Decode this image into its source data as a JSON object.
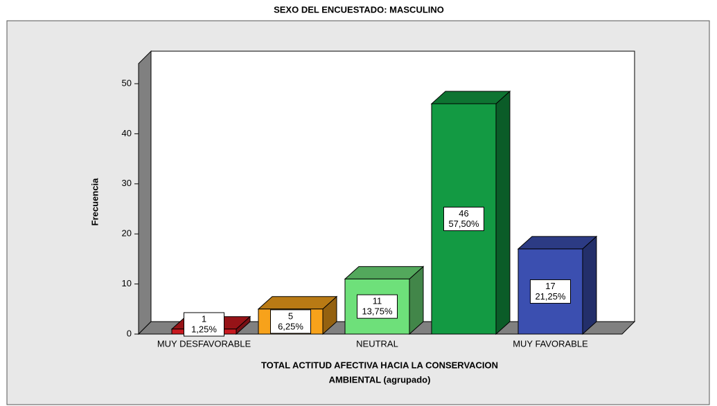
{
  "chart_data": {
    "type": "bar3d",
    "title": "SEXO DEL ENCUESTADO: MASCULINO",
    "x_label": [
      "TOTAL ACTITUD AFECTIVA HACIA LA CONSERVACION",
      "AMBIENTAL (agrupado)"
    ],
    "y_label": "Frecuencia",
    "categories": [
      "MUY DESFAVORABLE",
      null,
      "NEUTRAL",
      null,
      "MUY FAVORABLE"
    ],
    "values": [
      1,
      5,
      11,
      46,
      17
    ],
    "colors": [
      "#c8191f",
      "#f7a21b",
      "#6ee07a",
      "#139a43",
      "#3b4fb0"
    ],
    "percent": {
      "values": [
        1.25,
        6.25,
        13.75,
        57.5,
        21.25
      ],
      "value_labels": [
        "1,25%",
        "6,25%",
        "13,75%",
        "57,50%",
        "21,25%"
      ]
    },
    "ylim": [
      0,
      54
    ],
    "yticks": [
      0,
      10,
      20,
      30,
      40,
      50
    ]
  }
}
